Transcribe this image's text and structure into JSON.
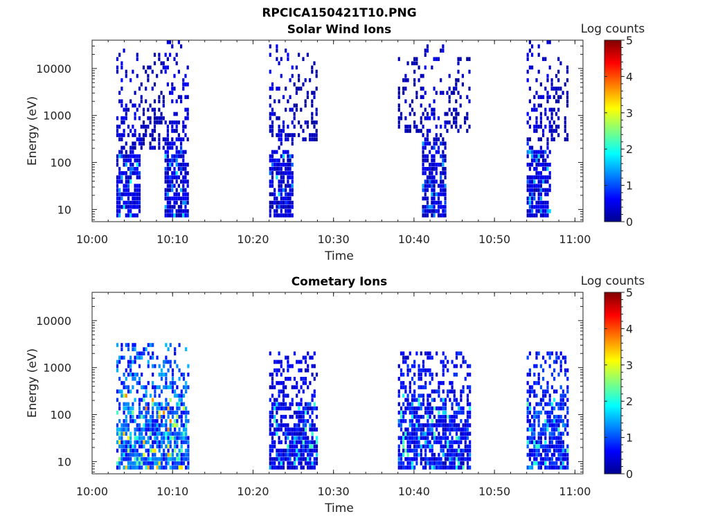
{
  "figure": {
    "filename": "RPCICA150421T10.PNG"
  },
  "chart_data": [
    {
      "type": "heatmap",
      "title": "Solar Wind Ions",
      "xlabel": "Time",
      "ylabel": "Energy (eV)",
      "x_range_minutes": [
        0,
        61
      ],
      "x_ticks": [
        "10:00",
        "10:10",
        "10:20",
        "10:30",
        "10:40",
        "10:50",
        "11:00"
      ],
      "y_scale": "log",
      "y_range_eV": [
        5.5,
        40000
      ],
      "y_ticks": [
        "10",
        "100",
        "1000",
        "10000"
      ],
      "colorbar": {
        "label": "Log counts",
        "range": [
          0,
          5
        ],
        "ticks": [
          "0",
          "1",
          "2",
          "3",
          "4",
          "5"
        ],
        "colormap": "jet"
      },
      "activity_intervals": [
        {
          "start": "10:03",
          "end": "10:06",
          "energy_eV": [
            7,
            30000
          ],
          "typical_log_counts": 0.5,
          "peak_log_counts": 1.9
        },
        {
          "start": "10:06",
          "end": "10:09",
          "energy_eV": [
            200,
            20000
          ],
          "typical_log_counts": 0.3,
          "peak_log_counts": 0.8
        },
        {
          "start": "10:09",
          "end": "10:12",
          "energy_eV": [
            7,
            35000
          ],
          "typical_log_counts": 0.5,
          "peak_log_counts": 1.9
        },
        {
          "start": "10:22",
          "end": "10:25",
          "energy_eV": [
            7,
            30000
          ],
          "typical_log_counts": 0.5,
          "peak_log_counts": 1.8
        },
        {
          "start": "10:25",
          "end": "10:28",
          "energy_eV": [
            300,
            20000
          ],
          "typical_log_counts": 0.3,
          "peak_log_counts": 0.8
        },
        {
          "start": "10:38",
          "end": "10:41",
          "energy_eV": [
            500,
            15000
          ],
          "typical_log_counts": 0.3,
          "peak_log_counts": 0.7
        },
        {
          "start": "10:41",
          "end": "10:44",
          "energy_eV": [
            7,
            30000
          ],
          "typical_log_counts": 0.5,
          "peak_log_counts": 1.5
        },
        {
          "start": "10:44",
          "end": "10:47",
          "energy_eV": [
            500,
            20000
          ],
          "typical_log_counts": 0.3,
          "peak_log_counts": 0.8
        },
        {
          "start": "10:54",
          "end": "10:57",
          "energy_eV": [
            7,
            35000
          ],
          "typical_log_counts": 0.5,
          "peak_log_counts": 1.8
        },
        {
          "start": "10:57",
          "end": "10:59",
          "energy_eV": [
            300,
            15000
          ],
          "typical_log_counts": 0.3,
          "peak_log_counts": 0.8
        }
      ]
    },
    {
      "type": "heatmap",
      "title": "Cometary Ions",
      "xlabel": "Time",
      "ylabel": "Energy (eV)",
      "x_range_minutes": [
        0,
        61
      ],
      "x_ticks": [
        "10:00",
        "10:10",
        "10:20",
        "10:30",
        "10:40",
        "10:50",
        "11:00"
      ],
      "y_scale": "log",
      "y_range_eV": [
        5.5,
        40000
      ],
      "y_ticks": [
        "10",
        "100",
        "1000",
        "10000"
      ],
      "colorbar": {
        "label": "Log counts",
        "range": [
          0,
          5
        ],
        "ticks": [
          "0",
          "1",
          "2",
          "3",
          "4",
          "5"
        ],
        "colormap": "jet"
      },
      "activity_intervals": [
        {
          "start": "10:03",
          "end": "10:12",
          "energy_eV": [
            6,
            3000
          ],
          "typical_log_counts": 1.2,
          "peak_log_counts": 3.9
        },
        {
          "start": "10:22",
          "end": "10:28",
          "energy_eV": [
            8,
            2000
          ],
          "typical_log_counts": 0.6,
          "peak_log_counts": 2.3
        },
        {
          "start": "10:38",
          "end": "10:47",
          "energy_eV": [
            8,
            2000
          ],
          "typical_log_counts": 0.7,
          "peak_log_counts": 2.3
        },
        {
          "start": "10:54",
          "end": "10:59",
          "energy_eV": [
            8,
            2000
          ],
          "typical_log_counts": 0.8,
          "peak_log_counts": 2.4
        }
      ]
    }
  ]
}
